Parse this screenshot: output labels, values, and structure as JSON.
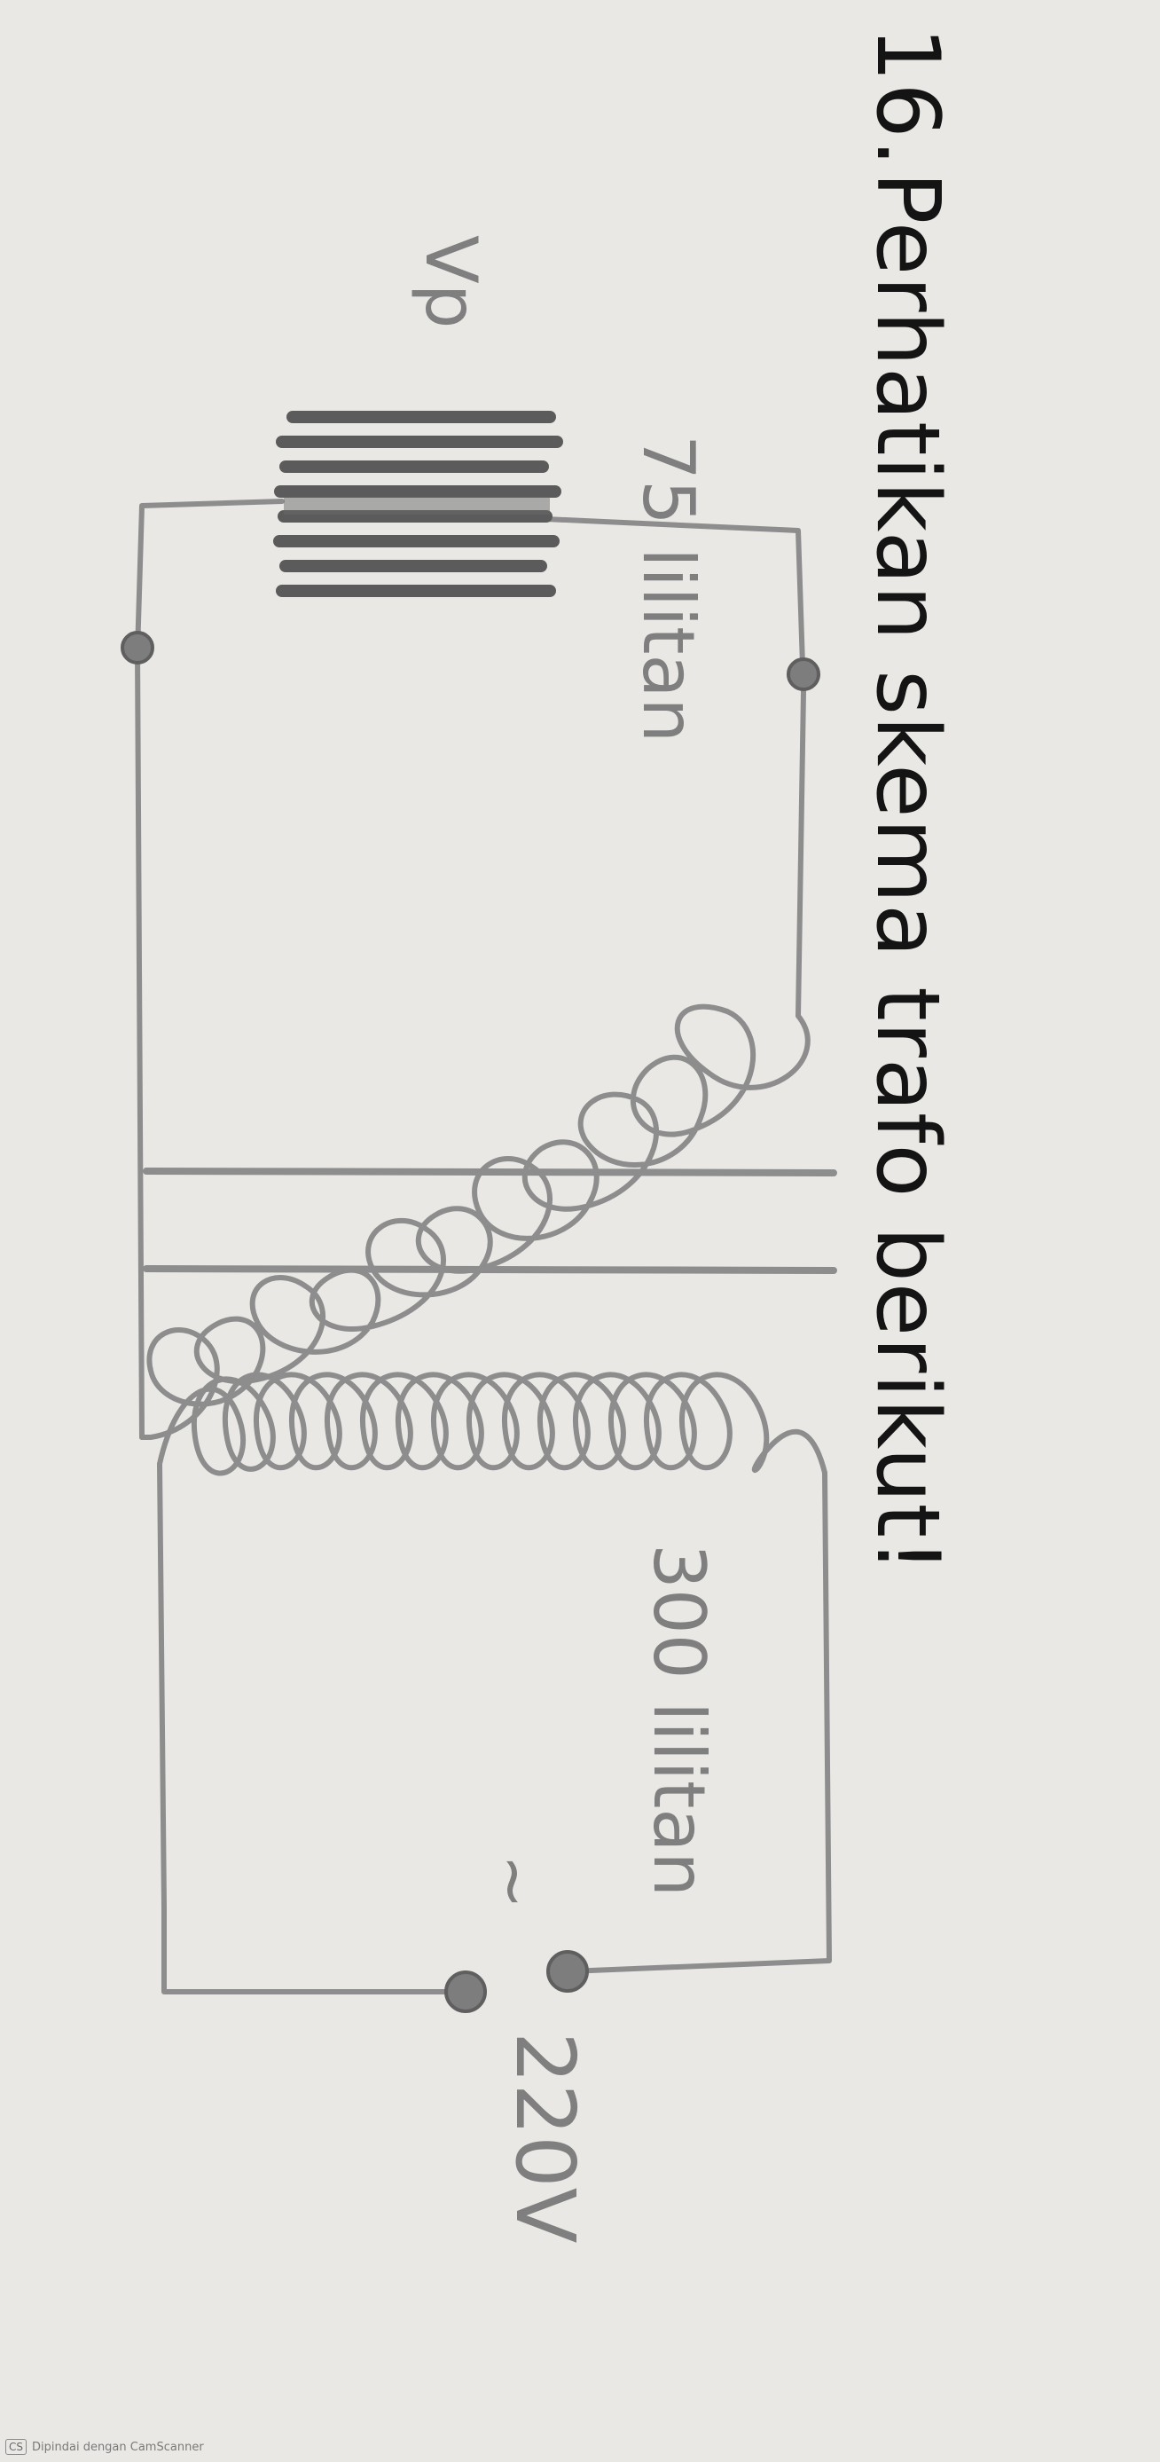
{
  "question": {
    "number": "16.",
    "text": "Perhatikan skema trafo berikut!"
  },
  "diagram": {
    "primary": {
      "voltage_label": "Vp",
      "turns_label": "75 lilitan"
    },
    "secondary": {
      "turns_label": "300 lilitan",
      "source_symbol": "~",
      "source_voltage": "220V"
    }
  },
  "footer": {
    "badge": "CS",
    "text": "Dipindai dengan CamScanner"
  },
  "colors": {
    "paper": "#e9e8e4",
    "wire": "#8d8d8d",
    "text": "#141414",
    "label": "#7f7f7f"
  }
}
